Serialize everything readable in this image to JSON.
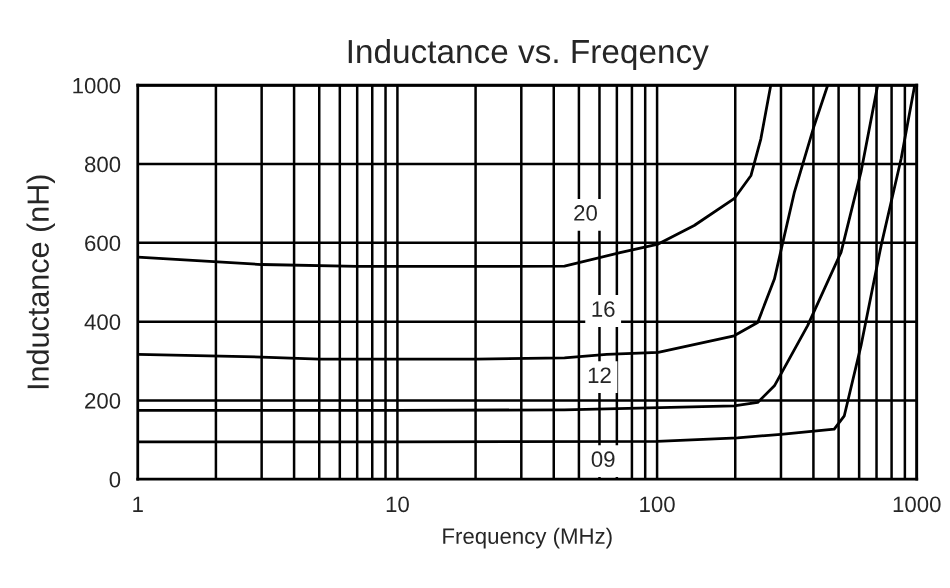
{
  "chart_data": {
    "type": "line",
    "title": "Inductance vs. Freqency",
    "xlabel": "Frequency (MHz)",
    "ylabel": "Inductance (nH)",
    "series": [
      {
        "color": "#000000",
        "x": [
          1,
          3,
          7,
          20,
          44,
          72,
          101,
          139,
          198,
          230,
          251,
          274
        ],
        "values": [
          564,
          545,
          540,
          540,
          541,
          575,
          597,
          644,
          712,
          771,
          864,
          1000
        ]
      },
      {
        "color": "#000000",
        "x": [
          1,
          3,
          5,
          20,
          44,
          64,
          101,
          198,
          244,
          283,
          338,
          403,
          454
        ],
        "values": [
          317,
          310,
          305,
          305,
          308,
          317,
          322,
          364,
          398,
          508,
          729,
          898,
          1000
        ]
      },
      {
        "color": "#000000",
        "x": [
          1,
          10,
          44,
          198,
          244,
          283,
          380,
          511,
          610,
          707
        ],
        "values": [
          175,
          175,
          176,
          186,
          195,
          237,
          390,
          576,
          780,
          1000
        ]
      },
      {
        "color": "#000000",
        "x": [
          1,
          10,
          100,
          204,
          300,
          481,
          526,
          610,
          729,
          871,
          982
        ],
        "values": [
          95,
          95,
          96,
          105,
          114,
          127,
          161,
          339,
          593,
          814,
          1000
        ]
      }
    ],
    "annotations": [
      {
        "text": "20",
        "x": 53,
        "y": 671
      },
      {
        "text": "16",
        "x": 62,
        "y": 427
      },
      {
        "text": "12",
        "x": 60,
        "y": 259
      },
      {
        "text": "09",
        "x": 62,
        "y": 46
      }
    ],
    "log": "x",
    "xlim": [
      1,
      1000
    ],
    "xticks": [
      1,
      10,
      100,
      1000
    ],
    "ylim": [
      0,
      1000
    ],
    "yticks": [
      0,
      200,
      400,
      600,
      800,
      1000
    ],
    "grid": true,
    "line_style": "solid",
    "marker": "none"
  }
}
